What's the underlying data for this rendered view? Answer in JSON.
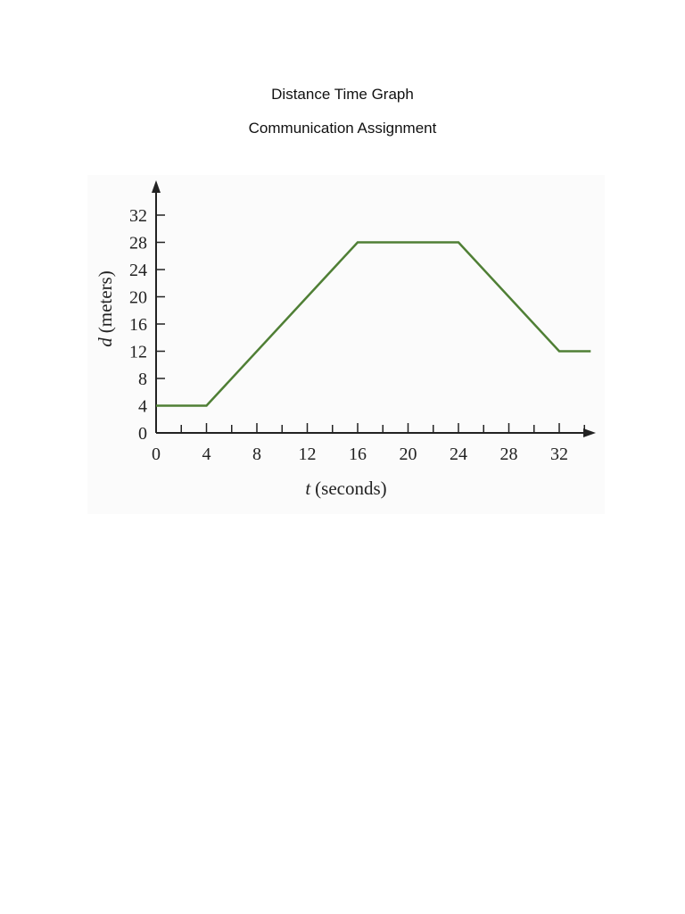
{
  "document": {
    "title": "Distance Time Graph",
    "subtitle": "Communication Assignment"
  },
  "chart_data": {
    "type": "line",
    "xlabel_var": "t",
    "xlabel_unit": "(seconds)",
    "ylabel_var": "d",
    "ylabel_unit": "(meters)",
    "x_ticks": [
      0,
      4,
      8,
      12,
      16,
      20,
      24,
      28,
      32
    ],
    "y_ticks": [
      0,
      4,
      8,
      12,
      16,
      20,
      24,
      28,
      32
    ],
    "xlim": [
      0,
      34
    ],
    "ylim": [
      0,
      34
    ],
    "grid": false,
    "line_color": "#4f7f35",
    "series": [
      {
        "x": [
          0,
          4,
          16,
          24,
          32,
          34.5
        ],
        "y": [
          4,
          4,
          28,
          28,
          12,
          12
        ]
      }
    ]
  }
}
